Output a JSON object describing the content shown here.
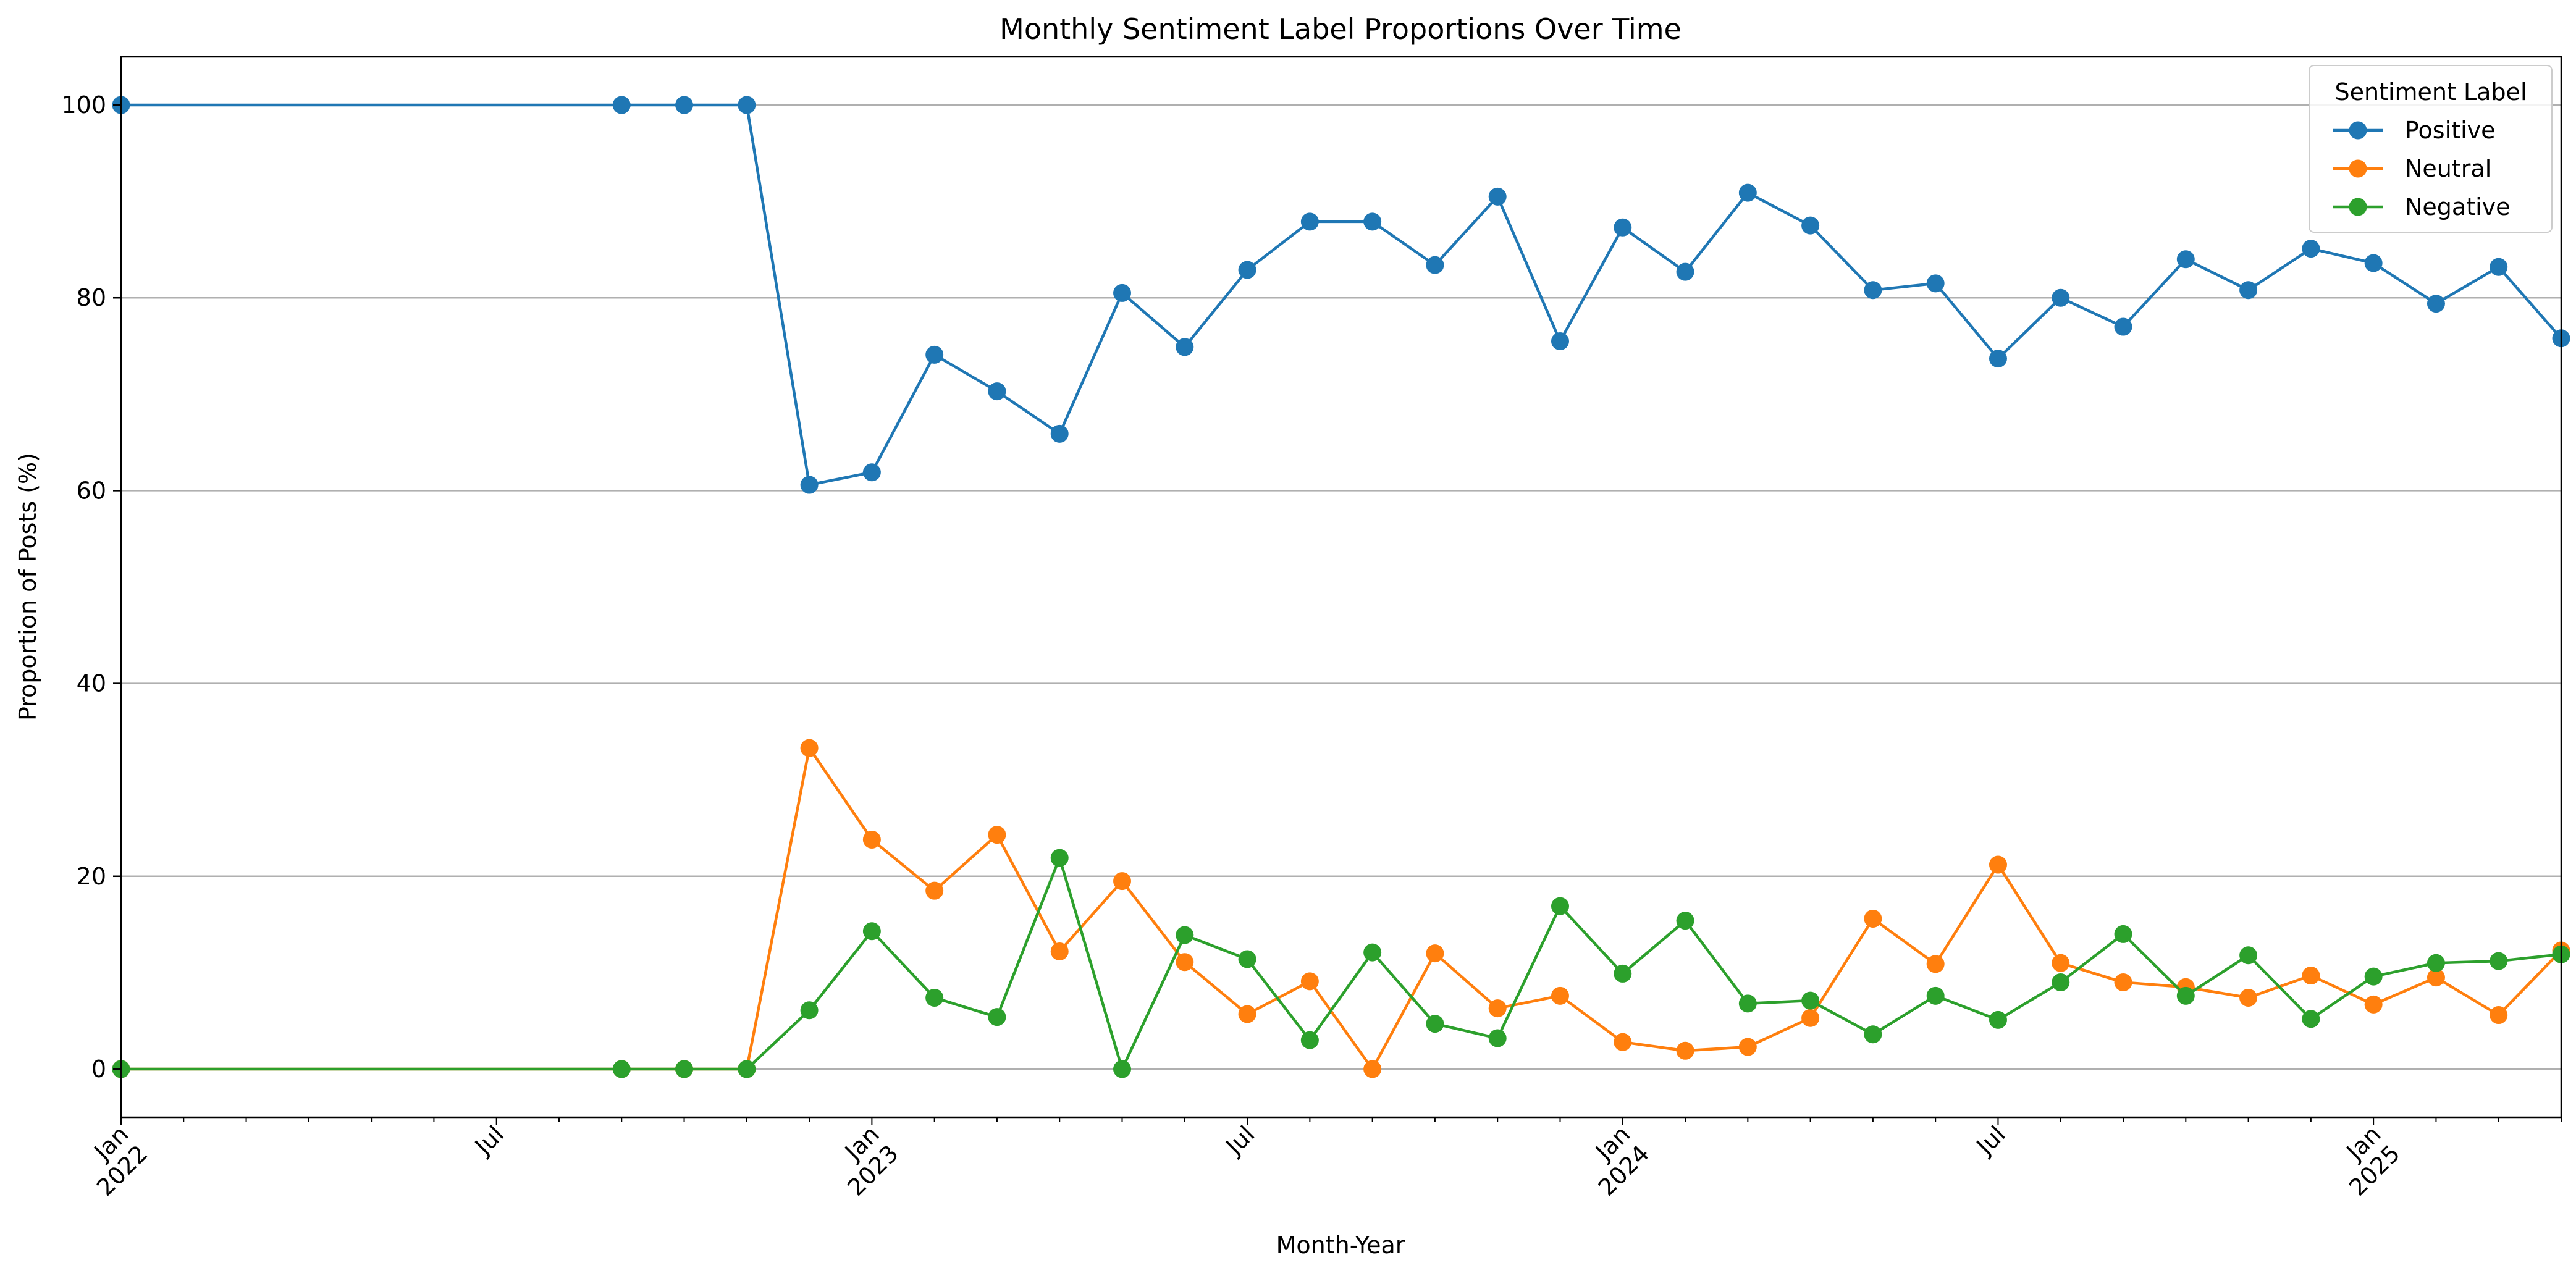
{
  "chart_data": {
    "type": "line",
    "title": "Monthly Sentiment Label Proportions Over Time",
    "xlabel": "Month-Year",
    "ylabel": "Proportion of Posts (%)",
    "x": [
      "2022-01",
      "2022-09",
      "2022-10",
      "2022-11",
      "2022-12",
      "2023-01",
      "2023-02",
      "2023-03",
      "2023-04",
      "2023-05",
      "2023-06",
      "2023-07",
      "2023-08",
      "2023-09",
      "2023-10",
      "2023-11",
      "2023-12",
      "2024-01",
      "2024-02",
      "2024-03",
      "2024-04",
      "2024-05",
      "2024-06",
      "2024-07",
      "2024-08",
      "2024-09",
      "2024-10",
      "2024-11",
      "2024-12",
      "2025-01",
      "2025-02",
      "2025-03",
      "2025-04"
    ],
    "series": [
      {
        "name": "Positive",
        "color": "#1f77b4",
        "values": [
          100,
          100,
          100,
          100,
          60.6,
          61.9,
          74.1,
          70.3,
          65.9,
          80.5,
          74.9,
          82.9,
          87.9,
          87.9,
          83.4,
          90.5,
          75.5,
          87.3,
          82.7,
          90.9,
          87.5,
          80.8,
          81.5,
          73.7,
          80.0,
          77.0,
          84.0,
          80.8,
          85.1,
          83.6,
          79.4,
          83.2,
          75.8
        ]
      },
      {
        "name": "Neutral",
        "color": "#ff7f0e",
        "values": [
          0,
          0,
          0,
          0,
          33.3,
          23.8,
          18.5,
          24.3,
          12.2,
          19.5,
          11.1,
          5.7,
          9.1,
          0,
          12.0,
          6.3,
          7.6,
          2.8,
          1.9,
          2.3,
          5.3,
          15.6,
          10.9,
          21.2,
          11.0,
          9.0,
          8.5,
          7.4,
          9.7,
          6.7,
          9.5,
          5.6,
          12.3
        ]
      },
      {
        "name": "Negative",
        "color": "#2ca02c",
        "values": [
          0,
          0,
          0,
          0,
          6.1,
          14.3,
          7.4,
          5.4,
          21.9,
          0,
          13.9,
          11.4,
          3.0,
          12.1,
          4.7,
          3.2,
          16.9,
          9.9,
          15.4,
          6.8,
          7.1,
          3.6,
          7.6,
          5.1,
          9.0,
          14.0,
          7.6,
          11.8,
          5.2,
          9.6,
          11.0,
          11.2,
          11.9
        ]
      }
    ],
    "xlim": [
      "2022-01",
      "2025-04"
    ],
    "ylim": [
      -5,
      105
    ],
    "yticks": [
      0,
      20,
      40,
      60,
      80,
      100
    ],
    "xticks_major": [
      {
        "date": "2022-01",
        "line1": "Jan",
        "line2": "2022"
      },
      {
        "date": "2022-07",
        "line1": "Jul",
        "line2": ""
      },
      {
        "date": "2023-01",
        "line1": "Jan",
        "line2": "2023"
      },
      {
        "date": "2023-07",
        "line1": "Jul",
        "line2": ""
      },
      {
        "date": "2024-01",
        "line1": "Jan",
        "line2": "2024"
      },
      {
        "date": "2024-07",
        "line1": "Jul",
        "line2": ""
      },
      {
        "date": "2025-01",
        "line1": "Jan",
        "line2": "2025"
      }
    ],
    "grid": "y-major",
    "legend": {
      "title": "Sentiment Label",
      "placement": "top-right"
    },
    "marker": "circle"
  }
}
